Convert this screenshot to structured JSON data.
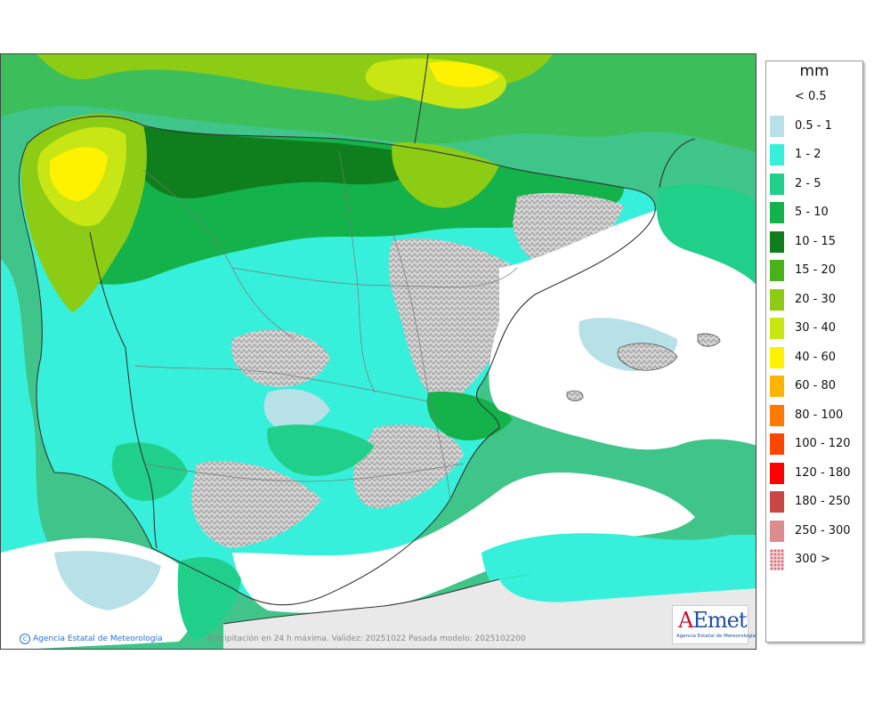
{
  "legend": {
    "unit": "mm",
    "items": [
      {
        "label": "< 0.5",
        "color": ""
      },
      {
        "label": "0.5 - 1",
        "color": "#b7e1e6"
      },
      {
        "label": "1 - 2",
        "color": "#37f0dc"
      },
      {
        "label": "2 - 5",
        "color": "#20d08a"
      },
      {
        "label": "5 - 10",
        "color": "#14b24a"
      },
      {
        "label": "10 - 15",
        "color": "#0f7f1e"
      },
      {
        "label": "15 - 20",
        "color": "#48b21c"
      },
      {
        "label": "20 - 30",
        "color": "#8dcc14"
      },
      {
        "label": "30 - 40",
        "color": "#c8e614"
      },
      {
        "label": "40 - 60",
        "color": "#fff200"
      },
      {
        "label": "60 - 80",
        "color": "#ffb400"
      },
      {
        "label": "80 - 100",
        "color": "#ff7a00"
      },
      {
        "label": "100 - 120",
        "color": "#ff4600"
      },
      {
        "label": "120 - 180",
        "color": "#ff0000"
      },
      {
        "label": "180 - 250",
        "color": "#c84646"
      },
      {
        "label": "250 - 300",
        "color": "#dc8c8c"
      },
      {
        "label": "300 >",
        "color": "#f0c8c8"
      }
    ]
  },
  "credit": "Agencia Estatal de Meteorología",
  "caption": "Precipitación en 24 h máxima. Validez: 20251022 Pasada modelo: 2025102200",
  "logo": {
    "mark_a": "A",
    "mark_rest": "Emet",
    "subtitle": "Agencia Estatal de Meteorología"
  }
}
